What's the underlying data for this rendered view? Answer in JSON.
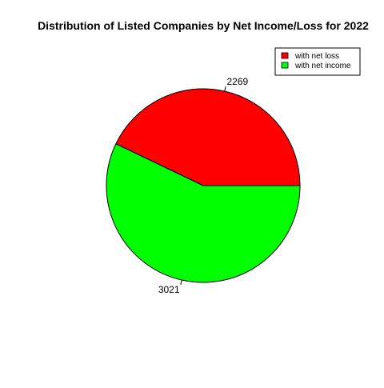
{
  "chart_data": {
    "type": "pie",
    "title": "Distribution of Listed Companies by Net Income/Loss for 2022",
    "slices": [
      {
        "label": "with net loss",
        "value": 2269,
        "color": "#ff0000"
      },
      {
        "label": "with net income",
        "value": 3021,
        "color": "#00ff00"
      }
    ],
    "legend_position": "top-right",
    "direction": "counterclockwise",
    "start": "3 o'clock"
  }
}
